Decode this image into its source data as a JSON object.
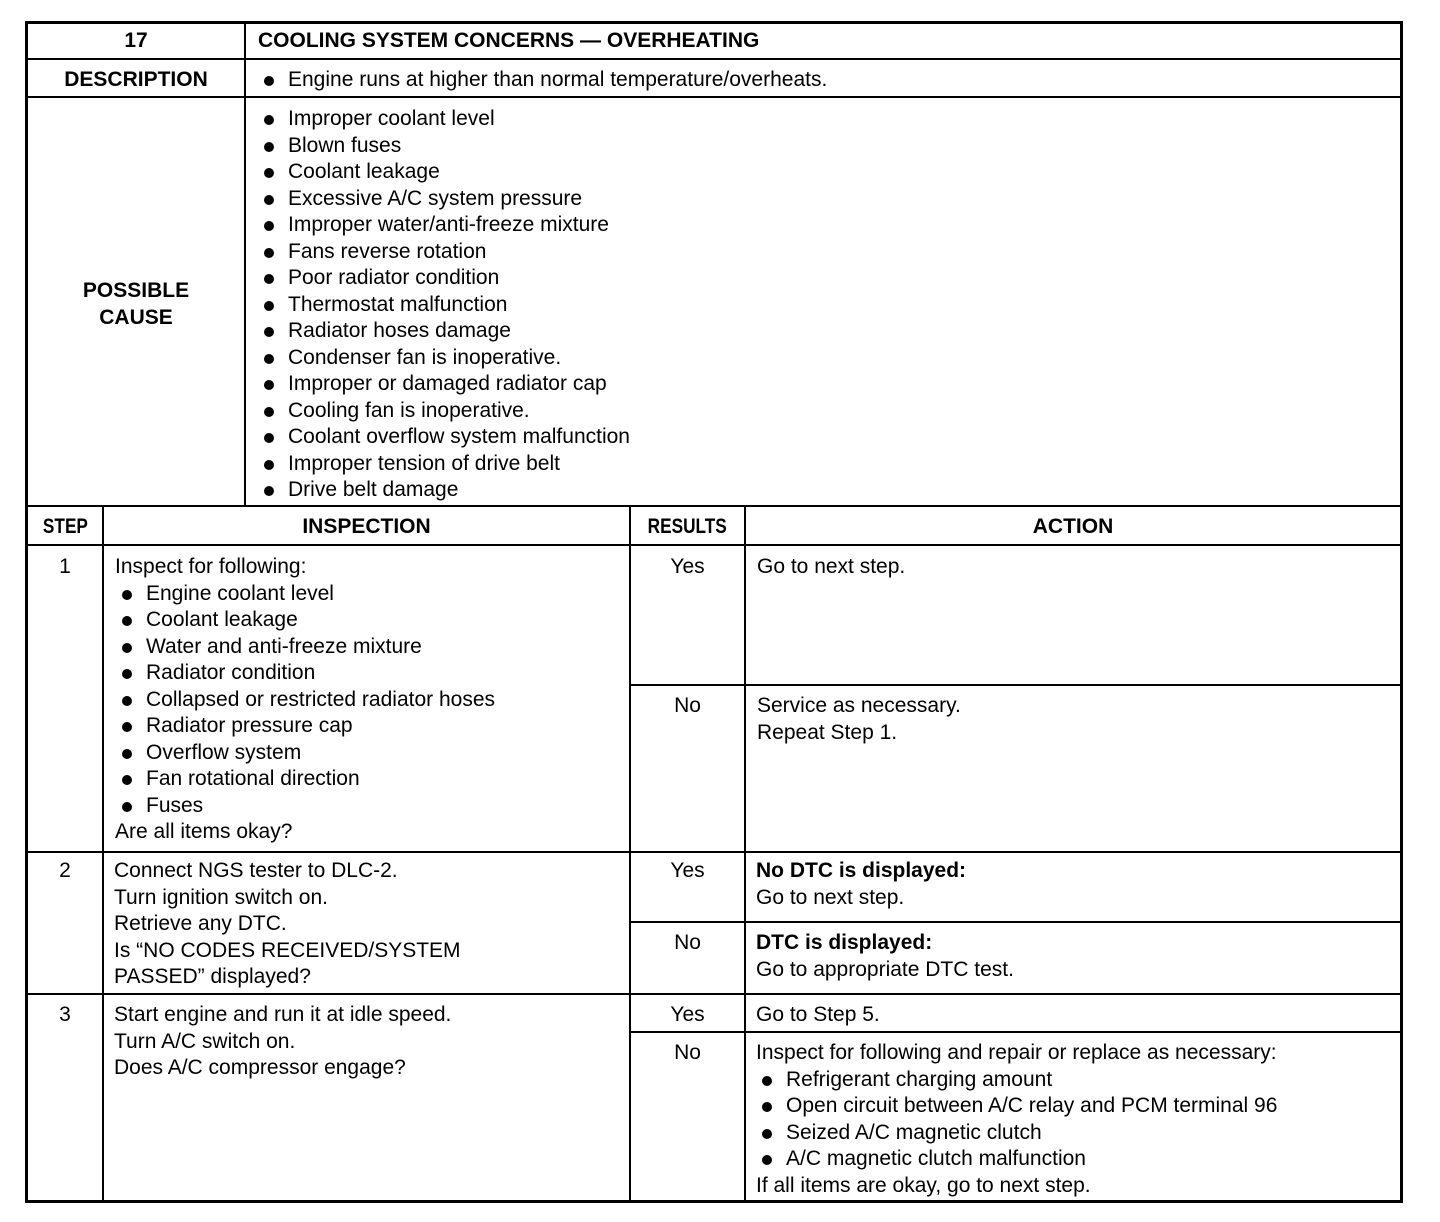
{
  "header": {
    "number": "17",
    "title": "COOLING SYSTEM CONCERNS — OVERHEATING"
  },
  "description": {
    "label": "DESCRIPTION",
    "items": [
      "Engine runs at higher than normal temperature/overheats."
    ]
  },
  "possible_cause": {
    "label_line1": "POSSIBLE",
    "label_line2": "CAUSE",
    "items": [
      "Improper coolant level",
      "Blown fuses",
      "Coolant leakage",
      "Excessive A/C system pressure",
      "Improper water/anti-freeze mixture",
      "Fans reverse rotation",
      "Poor radiator condition",
      "Thermostat malfunction",
      "Radiator hoses damage",
      "Condenser fan is inoperative.",
      "Improper or damaged radiator cap",
      "Cooling fan is inoperative.",
      "Coolant overflow system malfunction",
      "Improper tension of drive belt",
      "Drive belt damage"
    ]
  },
  "columns": {
    "step": "STEP",
    "inspection": "INSPECTION",
    "results": "RESULTS",
    "action": "ACTION"
  },
  "steps": [
    {
      "step": "1",
      "inspection_intro": "Inspect for following:",
      "inspection_items": [
        "Engine coolant level",
        "Coolant leakage",
        "Water and anti-freeze mixture",
        "Radiator condition",
        "Collapsed or restricted radiator hoses",
        "Radiator pressure cap",
        "Overflow system",
        "Fan rotational direction",
        "Fuses"
      ],
      "inspection_question": "Are all items okay?",
      "yes": {
        "result": "Yes",
        "action": [
          "Go to next step."
        ]
      },
      "no": {
        "result": "No",
        "action": [
          "Service as necessary.",
          "Repeat Step 1."
        ]
      }
    },
    {
      "step": "2",
      "inspection_lines": [
        "Connect NGS tester to DLC-2.",
        "Turn ignition switch on.",
        "Retrieve any DTC.",
        "Is “NO CODES RECEIVED/SYSTEM",
        "PASSED” displayed?"
      ],
      "yes": {
        "result": "Yes",
        "action_heading": "No DTC is displayed:",
        "action": [
          "Go to next step."
        ]
      },
      "no": {
        "result": "No",
        "action_heading": "DTC is displayed:",
        "action": [
          "Go to appropriate DTC test."
        ]
      }
    },
    {
      "step": "3",
      "inspection_lines": [
        "Start engine and run it at idle speed.",
        "Turn A/C switch on.",
        "Does A/C compressor engage?"
      ],
      "yes": {
        "result": "Yes",
        "action": [
          "Go to Step 5."
        ]
      },
      "no": {
        "result": "No",
        "action_intro": "Inspect for following and repair or replace as necessary:",
        "action_items": [
          "Refrigerant charging amount",
          "Open circuit between A/C relay and PCM terminal 96",
          "Seized A/C magnetic clutch",
          "A/C magnetic clutch malfunction"
        ],
        "action_outro": "If all items are okay, go to next step."
      }
    }
  ]
}
